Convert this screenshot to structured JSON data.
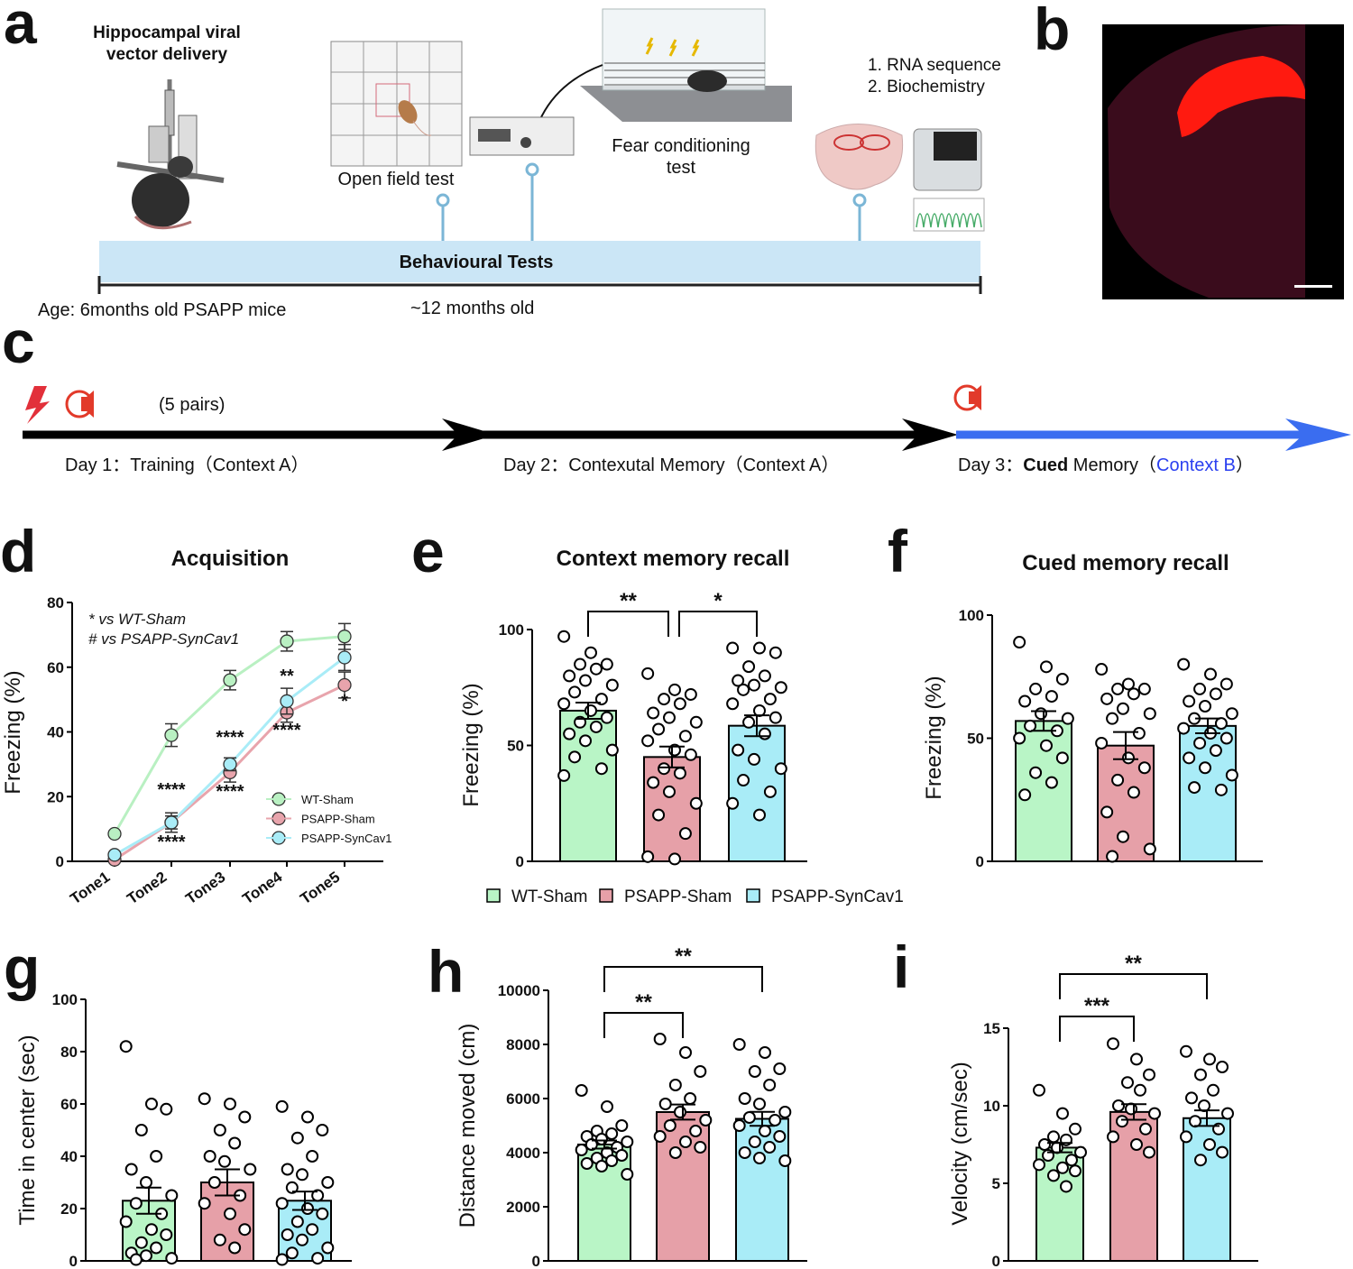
{
  "panel_a": {
    "label": "a",
    "injection_title": [
      "Hippocampal viral",
      "vector delivery"
    ],
    "open_field": "Open field test",
    "fear_conditioning": [
      "Fear conditioning",
      "test"
    ],
    "analyses": [
      "1. RNA sequence",
      "2. Biochemistry"
    ],
    "timeline_title": "Behavioural Tests",
    "age_start": "Age: 6months old PSAPP mice",
    "age_end": "~12 months old"
  },
  "panel_b": {
    "label": "b"
  },
  "panel_c": {
    "label": "c",
    "pairs": "(5 pairs)",
    "day1": "Day 1：Training（Context A）",
    "day2": "Day 2：Contexutal Memory（Context A）",
    "day3": [
      "Day 3：",
      "Cued",
      " Memory（",
      "Context B",
      "）"
    ]
  },
  "legend": [
    {
      "name": "WT-Sham",
      "color": "#b9f5c6"
    },
    {
      "name": "PSAPP-Sham",
      "color": "#e6a0a8"
    },
    {
      "name": "PSAPP-SynCav1",
      "color": "#a9ecf7"
    }
  ],
  "chart_data": [
    {
      "type": "line",
      "panel": "d",
      "title": "Acquisition",
      "y_label": "Freezing (%)",
      "categories": [
        "Tone1",
        "Tone2",
        "Tone3",
        "Tone4",
        "Tone5"
      ],
      "ylim": [
        0,
        80
      ],
      "yticks": [
        0,
        20,
        40,
        60,
        80
      ],
      "notes": [
        "*  vs WT-Sham",
        "#  vs PSAPP-SynCav1"
      ],
      "series": [
        {
          "name": "WT-Sham",
          "color": "#b9f0c2",
          "values": [
            8.5,
            39,
            56,
            68,
            69.5
          ],
          "errors": [
            0.5,
            3.5,
            3,
            3,
            4
          ]
        },
        {
          "name": "PSAPP-Sham",
          "color": "#e8a4ac",
          "values": [
            0.5,
            12,
            27.5,
            46,
            54.5
          ],
          "errors": [
            0.5,
            3,
            3,
            3,
            4
          ]
        },
        {
          "name": "PSAPP-SynCav1",
          "color": "#a9ecf7",
          "values": [
            2,
            12,
            30,
            49.5,
            63
          ],
          "errors": [
            0.5,
            2,
            2,
            4,
            4
          ]
        }
      ],
      "annotations": [
        {
          "text": "****",
          "category": 1
        },
        {
          "text": "****",
          "category": 1
        },
        {
          "text": "****",
          "category": 2
        },
        {
          "text": "****",
          "category": 2
        },
        {
          "text": "**",
          "category": 3
        },
        {
          "text": "****",
          "category": 3
        },
        {
          "text": "*",
          "category": 4
        }
      ]
    },
    {
      "type": "bar",
      "panel": "e",
      "title": "Context memory recall",
      "y_label": "Freezing (%)",
      "ylim": [
        0,
        100
      ],
      "yticks": [
        0,
        50,
        100
      ],
      "colors": [
        "#b9f5c6",
        "#e6a0a8",
        "#a9ecf7"
      ],
      "values": [
        65,
        45,
        58.5
      ],
      "errors": [
        3.5,
        4.5,
        4.5
      ],
      "points": [
        [
          97,
          90,
          85,
          85,
          83,
          80,
          78,
          76,
          73,
          70,
          68,
          65,
          62,
          60,
          58,
          55,
          52,
          48,
          45,
          40,
          37
        ],
        [
          81,
          74,
          72,
          70,
          68,
          64,
          62,
          60,
          57,
          54,
          52,
          48,
          46,
          40,
          38,
          34,
          30,
          25,
          20,
          12,
          2,
          1
        ],
        [
          92,
          92,
          90,
          84,
          80,
          78,
          76,
          75,
          74,
          70,
          68,
          65,
          62,
          60,
          55,
          48,
          44,
          40,
          35,
          30,
          25,
          20
        ]
      ],
      "significance": [
        {
          "text": "**",
          "from": 0,
          "to": 1
        },
        {
          "text": "*",
          "from": 1,
          "to": 2
        }
      ]
    },
    {
      "type": "bar",
      "panel": "f",
      "title": "Cued memory recall",
      "y_label": "Freezing (%)",
      "ylim": [
        0,
        100
      ],
      "yticks": [
        0,
        50,
        100
      ],
      "colors": [
        "#b9f5c6",
        "#e6a0a8",
        "#a9ecf7"
      ],
      "values": [
        57,
        47,
        55
      ],
      "errors": [
        4,
        5.5,
        3
      ],
      "points": [
        [
          89,
          79,
          74,
          70,
          67,
          65,
          60,
          58,
          55,
          53,
          50,
          47,
          42,
          36,
          32,
          27
        ],
        [
          78,
          72,
          70,
          70,
          68,
          66,
          62,
          60,
          58,
          52,
          48,
          42,
          38,
          33,
          28,
          20,
          10,
          5,
          2
        ],
        [
          80,
          76,
          72,
          70,
          68,
          65,
          63,
          60,
          58,
          56,
          54,
          52,
          50,
          48,
          45,
          42,
          38,
          35,
          30,
          29
        ]
      ],
      "significance": []
    },
    {
      "type": "bar",
      "panel": "g",
      "y_label": "Time in center (sec)",
      "ylim": [
        0,
        100
      ],
      "yticks": [
        0,
        20,
        40,
        60,
        80,
        100
      ],
      "colors": [
        "#b9f5c6",
        "#e6a0a8",
        "#a9ecf7"
      ],
      "values": [
        23,
        30,
        23
      ],
      "errors": [
        5,
        5,
        3.5
      ],
      "points": [
        [
          82,
          60,
          58,
          50,
          40,
          35,
          30,
          25,
          22,
          18,
          15,
          12,
          10,
          7,
          5,
          3,
          2,
          1,
          0.5
        ],
        [
          62,
          60,
          55,
          50,
          45,
          40,
          38,
          35,
          30,
          25,
          22,
          18,
          12,
          8,
          5
        ],
        [
          59,
          55,
          50,
          47,
          40,
          35,
          33,
          30,
          28,
          25,
          22,
          20,
          18,
          15,
          12,
          10,
          8,
          5,
          3,
          1,
          0.5
        ]
      ],
      "significance": []
    },
    {
      "type": "bar",
      "panel": "h",
      "y_label": "Distance moved (cm)",
      "ylim": [
        0,
        10000
      ],
      "yticks": [
        0,
        2000,
        4000,
        6000,
        8000,
        10000
      ],
      "colors": [
        "#b9f5c6",
        "#e6a0a8",
        "#a9ecf7"
      ],
      "values": [
        4300,
        5500,
        5250
      ],
      "errors": [
        150,
        280,
        260
      ],
      "points": [
        [
          6300,
          5700,
          5000,
          4800,
          4700,
          4600,
          4500,
          4400,
          4300,
          4200,
          4100,
          4000,
          3900,
          3800,
          3700,
          3600,
          3500,
          3200
        ],
        [
          8200,
          7700,
          7000,
          6500,
          6000,
          5800,
          5500,
          5200,
          5000,
          4800,
          4600,
          4400,
          4200,
          4000
        ],
        [
          8000,
          7700,
          7100,
          7000,
          6500,
          6000,
          5800,
          5500,
          5300,
          5200,
          5000,
          4800,
          4600,
          4400,
          4200,
          4000,
          3800,
          3700
        ]
      ],
      "significance": [
        {
          "text": "**",
          "from": 0,
          "to": 1
        },
        {
          "text": "**",
          "from": 0,
          "to": 2
        }
      ]
    },
    {
      "type": "bar",
      "panel": "i",
      "y_label": "Velocity (cm/sec)",
      "ylim": [
        0,
        15
      ],
      "yticks": [
        0,
        5,
        10,
        15
      ],
      "colors": [
        "#b9f5c6",
        "#e6a0a8",
        "#a9ecf7"
      ],
      "values": [
        7.3,
        9.6,
        9.2
      ],
      "errors": [
        0.3,
        0.5,
        0.5
      ],
      "points": [
        [
          11,
          9.5,
          8.5,
          8,
          7.8,
          7.5,
          7.3,
          7,
          6.8,
          6.5,
          6.2,
          6,
          5.8,
          5.5,
          4.8
        ],
        [
          14,
          13,
          12,
          11.5,
          11,
          10,
          9.8,
          9.5,
          9,
          8.5,
          8,
          7.5,
          7
        ],
        [
          13.5,
          13,
          12.5,
          12,
          11,
          10.5,
          10,
          9.5,
          9,
          8.5,
          8,
          7.5,
          7,
          6.5
        ]
      ],
      "significance": [
        {
          "text": "***",
          "from": 0,
          "to": 1
        },
        {
          "text": "**",
          "from": 0,
          "to": 2
        }
      ]
    }
  ]
}
